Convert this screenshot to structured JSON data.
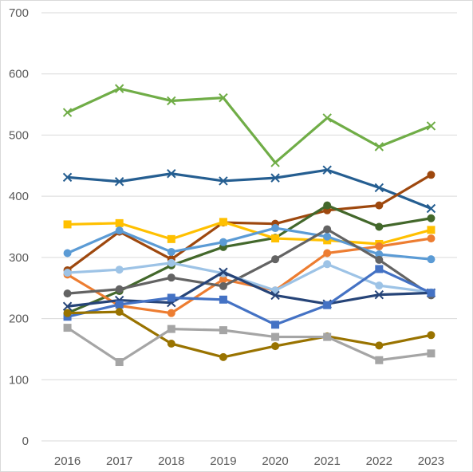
{
  "chart_data": {
    "type": "line",
    "title": "",
    "xlabel": "",
    "ylabel": "",
    "categories": [
      "2016",
      "2017",
      "2018",
      "2019",
      "2020",
      "2021",
      "2022",
      "2023"
    ],
    "ylim": [
      0,
      700
    ],
    "yticks": [
      "0",
      "100",
      "200",
      "300",
      "400",
      "500",
      "600",
      "700"
    ],
    "grid": true,
    "legend": "none",
    "series": [
      {
        "color": "#70AD47",
        "marker": "x",
        "values": [
          537,
          576,
          556,
          561,
          455,
          528,
          481,
          515
        ]
      },
      {
        "color": "#255E91",
        "marker": "x",
        "values": [
          431,
          424,
          437,
          425,
          430,
          443,
          414,
          380
        ]
      },
      {
        "color": "#9E480E",
        "marker": "circle",
        "values": [
          279,
          342,
          297,
          357,
          355,
          377,
          385,
          435
        ]
      },
      {
        "color": "#43682B",
        "marker": "circle",
        "values": [
          209,
          245,
          287,
          317,
          332,
          385,
          350,
          364
        ]
      },
      {
        "color": "#FFC000",
        "marker": "square",
        "values": [
          354,
          356,
          330,
          358,
          331,
          328,
          322,
          345
        ]
      },
      {
        "color": "#ED7D31",
        "marker": "circle",
        "values": [
          272,
          221,
          209,
          264,
          246,
          307,
          318,
          331
        ]
      },
      {
        "color": "#5B9BD5",
        "marker": "circle",
        "values": [
          307,
          344,
          309,
          325,
          348,
          334,
          305,
          297
        ]
      },
      {
        "color": "#636363",
        "marker": "circle",
        "values": [
          241,
          248,
          267,
          253,
          297,
          346,
          296,
          238
        ]
      },
      {
        "color": "#9DC3E6",
        "marker": "circle",
        "values": [
          275,
          280,
          291,
          274,
          246,
          289,
          254,
          243
        ]
      },
      {
        "color": "#264478",
        "marker": "x",
        "values": [
          220,
          230,
          226,
          276,
          238,
          224,
          239,
          242
        ]
      },
      {
        "color": "#4472C4",
        "marker": "square",
        "values": [
          203,
          223,
          234,
          231,
          190,
          222,
          281,
          242
        ]
      },
      {
        "color": "#997300",
        "marker": "circle",
        "values": [
          209,
          211,
          159,
          137,
          155,
          171,
          156,
          173
        ]
      },
      {
        "color": "#A5A5A5",
        "marker": "square",
        "values": [
          185,
          129,
          183,
          181,
          170,
          170,
          132,
          143
        ]
      }
    ]
  }
}
